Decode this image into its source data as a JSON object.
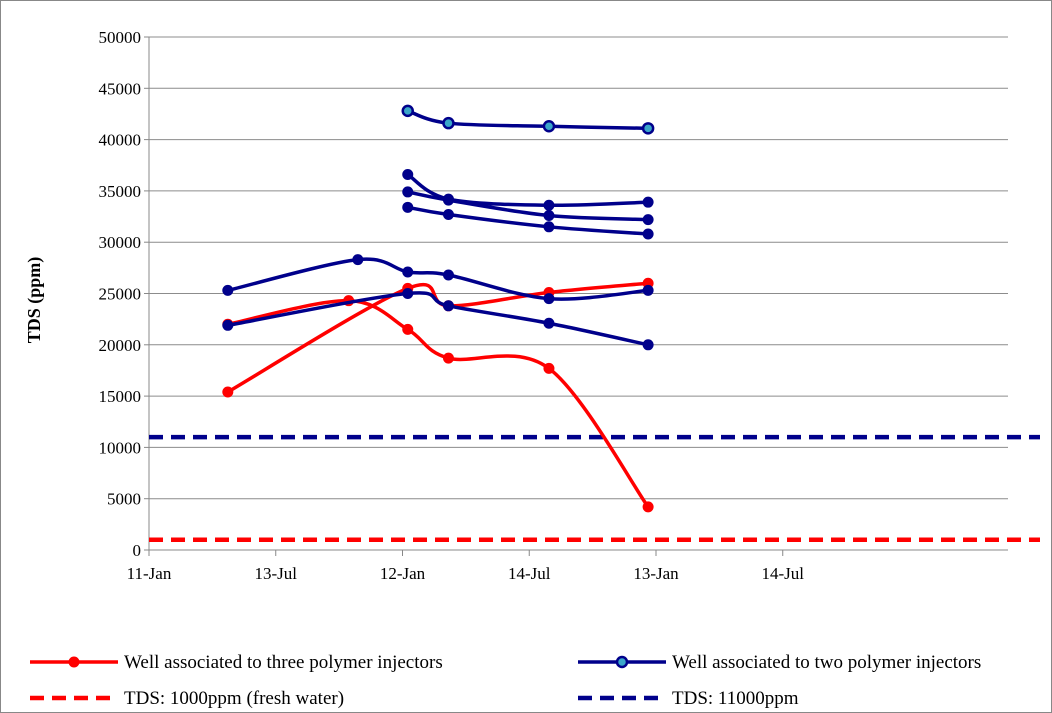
{
  "chart_data": {
    "type": "line",
    "ylabel": "TDS (ppm)",
    "xlabel": "",
    "title": "",
    "ylim": [
      0,
      50000
    ],
    "yticks": [
      0,
      5000,
      10000,
      15000,
      20000,
      25000,
      30000,
      35000,
      40000,
      45000,
      50000
    ],
    "xlim": [
      "2011-01-01",
      "2014-08-01"
    ],
    "xticks": [
      {
        "date": "2011-01-01",
        "label": "11-Jan"
      },
      {
        "date": "2011-07-13",
        "label": "13-Jul"
      },
      {
        "date": "2012-01-22",
        "label": "12-Jan"
      },
      {
        "date": "2012-08-02",
        "label": "14-Jul"
      },
      {
        "date": "2013-02-11",
        "label": "13-Jan"
      },
      {
        "date": "2013-08-23",
        "label": "14-Jul"
      }
    ],
    "grid": "horizontal",
    "legend_position": "bottom",
    "legend": [
      {
        "label": "Well associated to three polymer injectors",
        "color": "#ff0000",
        "style": "line-marker"
      },
      {
        "label": "Well associated to two polymer injectors",
        "color": "#00008b",
        "style": "line-marker-teal"
      },
      {
        "label": "TDS: 1000ppm (fresh water)",
        "color": "#ff0000",
        "style": "dashed"
      },
      {
        "label": "TDS: 11000ppm",
        "color": "#00008b",
        "style": "dashed"
      }
    ],
    "series": [
      {
        "group": "three",
        "color": "#ff0000",
        "marker": "circle",
        "points": [
          [
            "2011-05-01",
            15400
          ],
          [
            "2012-01-30",
            25500
          ],
          [
            "2012-04-01",
            23800
          ],
          [
            "2012-09-01",
            25100
          ],
          [
            "2013-01-30",
            26000
          ]
        ]
      },
      {
        "group": "three",
        "color": "#ff0000",
        "marker": "circle",
        "points": [
          [
            "2011-05-01",
            22000
          ],
          [
            "2011-11-01",
            24300
          ],
          [
            "2012-01-30",
            21500
          ],
          [
            "2012-04-01",
            18700
          ],
          [
            "2012-09-01",
            17700
          ],
          [
            "2013-01-30",
            4200
          ]
        ]
      },
      {
        "group": "two",
        "color": "#00008b",
        "marker": "circle",
        "points": [
          [
            "2011-05-01",
            21900
          ],
          [
            "2012-01-30",
            25000
          ],
          [
            "2012-04-01",
            23800
          ],
          [
            "2012-09-01",
            22100
          ],
          [
            "2013-01-30",
            20000
          ]
        ]
      },
      {
        "group": "two",
        "color": "#00008b",
        "marker": "circle",
        "points": [
          [
            "2011-05-01",
            25300
          ],
          [
            "2011-11-15",
            28300
          ],
          [
            "2012-01-30",
            27100
          ],
          [
            "2012-04-01",
            26800
          ],
          [
            "2012-09-01",
            24500
          ],
          [
            "2013-01-30",
            25300
          ]
        ]
      },
      {
        "group": "two",
        "color": "#00008b",
        "marker": "circle",
        "points": [
          [
            "2012-01-30",
            33400
          ],
          [
            "2012-04-01",
            32700
          ],
          [
            "2012-09-01",
            31500
          ],
          [
            "2013-01-30",
            30800
          ]
        ]
      },
      {
        "group": "two",
        "color": "#00008b",
        "marker": "circle",
        "points": [
          [
            "2012-01-30",
            34900
          ],
          [
            "2012-04-01",
            34100
          ],
          [
            "2012-09-01",
            32600
          ],
          [
            "2013-01-30",
            32200
          ]
        ]
      },
      {
        "group": "two",
        "color": "#00008b",
        "marker": "circle",
        "points": [
          [
            "2012-01-30",
            36600
          ],
          [
            "2012-04-01",
            34200
          ],
          [
            "2012-09-01",
            33600
          ],
          [
            "2013-01-30",
            33900
          ]
        ]
      },
      {
        "group": "two",
        "color": "#00008b",
        "marker": "circle-teal",
        "points": [
          [
            "2012-01-30",
            42800
          ],
          [
            "2012-04-01",
            41600
          ],
          [
            "2012-09-01",
            41300
          ],
          [
            "2013-01-30",
            41100
          ]
        ]
      }
    ],
    "reference_lines": [
      {
        "value": 1000,
        "color": "#ff0000",
        "style": "dashed"
      },
      {
        "value": 11000,
        "color": "#00008b",
        "style": "dashed"
      }
    ]
  }
}
